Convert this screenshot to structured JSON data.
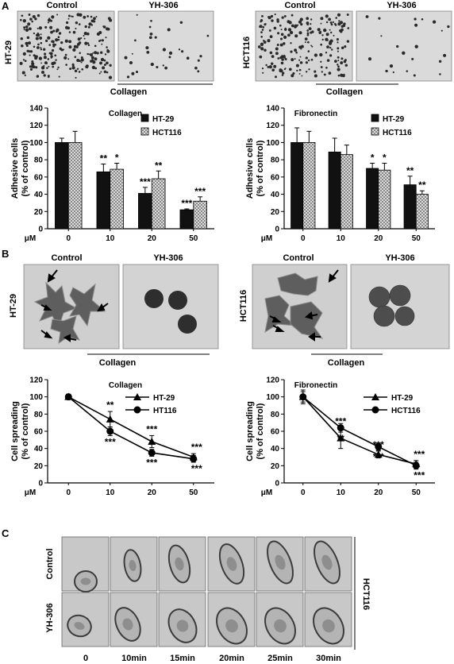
{
  "panel_letters": {
    "a": "A",
    "b": "B",
    "c": "C"
  },
  "panel_a": {
    "left": {
      "col1": "Control",
      "col2": "YH-306",
      "row": "HT-29",
      "substrate": "Collagen"
    },
    "right": {
      "col1": "Control",
      "col2": "YH-306",
      "row": "HCT116",
      "substrate": "Collagen"
    }
  },
  "panel_b": {
    "left": {
      "col1": "Control",
      "col2": "YH-306",
      "row": "HT-29",
      "substrate": "Collagen"
    },
    "right": {
      "col1": "Control",
      "col2": "YH-306",
      "row": "HCT116",
      "substrate": "Collagen"
    }
  },
  "panel_c": {
    "rows": [
      "Control",
      "YH-306"
    ],
    "cell_line": "HCT116",
    "times": [
      "0",
      "10min",
      "15min",
      "20min",
      "25min",
      "30min"
    ]
  },
  "chart_data": [
    {
      "type": "bar",
      "title": "Collagen",
      "ylabel": "Adhesive cells (% of control)",
      "xunit": "μM",
      "categories": [
        "0",
        "10",
        "20",
        "50"
      ],
      "ylim": [
        0,
        140
      ],
      "yticks": [
        0,
        20,
        40,
        60,
        80,
        100,
        120,
        140
      ],
      "legend_position": "top-right",
      "series": [
        {
          "name": "HT-29",
          "values": [
            100,
            66,
            41,
            22
          ],
          "errors": [
            5,
            9,
            7,
            1
          ],
          "sig": [
            "",
            "**",
            "***",
            "***"
          ],
          "color": "#111111"
        },
        {
          "name": "HCT116",
          "values": [
            100,
            69,
            58,
            32
          ],
          "errors": [
            13,
            7,
            9,
            5
          ],
          "sig": [
            "",
            "*",
            "**",
            "***"
          ],
          "color": "#cfcfcf"
        }
      ]
    },
    {
      "type": "bar",
      "title": "Fibronectin",
      "ylabel": "Adhesive cells (% of control)",
      "xunit": "μM",
      "categories": [
        "0",
        "10",
        "20",
        "50"
      ],
      "ylim": [
        0,
        140
      ],
      "yticks": [
        0,
        20,
        40,
        60,
        80,
        100,
        120,
        140
      ],
      "legend_position": "top-right",
      "series": [
        {
          "name": "HT-29",
          "values": [
            100,
            89,
            70,
            51
          ],
          "errors": [
            17,
            16,
            6,
            10
          ],
          "sig": [
            "",
            "",
            "*",
            "**"
          ],
          "color": "#111111"
        },
        {
          "name": "HCT116",
          "values": [
            100,
            86,
            68,
            40
          ],
          "errors": [
            13,
            11,
            8,
            4
          ],
          "sig": [
            "",
            "",
            "*",
            "**"
          ],
          "color": "#cfcfcf"
        }
      ]
    },
    {
      "type": "line",
      "title": "Collagen",
      "ylabel": "Cell spreading (% of control)",
      "xunit": "μM",
      "categories": [
        "0",
        "10",
        "20",
        "50"
      ],
      "ylim": [
        0,
        120
      ],
      "yticks": [
        0,
        20,
        40,
        60,
        80,
        100,
        120
      ],
      "legend_position": "top-right",
      "series": [
        {
          "name": "HT-29",
          "marker": "triangle",
          "values": [
            100,
            74,
            48,
            30
          ],
          "errors": [
            3,
            9,
            7,
            4
          ],
          "sig": [
            "",
            "**",
            "***",
            "***"
          ]
        },
        {
          "name": "HT116",
          "marker": "circle",
          "values": [
            100,
            60,
            35,
            28
          ],
          "errors": [
            3,
            5,
            4,
            4
          ],
          "sig": [
            "",
            "***",
            "***",
            "***"
          ]
        }
      ]
    },
    {
      "type": "line",
      "title": "Fibronectin",
      "ylabel": "Cell spreading (% of control)",
      "xunit": "μM",
      "categories": [
        "0",
        "10",
        "20",
        "50"
      ],
      "ylim": [
        0,
        120
      ],
      "yticks": [
        0,
        20,
        40,
        60,
        80,
        100,
        120
      ],
      "legend_position": "top-right",
      "series": [
        {
          "name": "HT-29",
          "marker": "triangle",
          "values": [
            100,
            52,
            33,
            22
          ],
          "errors": [
            8,
            12,
            4,
            4
          ],
          "sig": [
            "",
            "***",
            "***",
            "***"
          ]
        },
        {
          "name": "HCT116",
          "marker": "circle",
          "values": [
            100,
            64,
            42,
            20
          ],
          "errors": [
            6,
            5,
            4,
            4
          ],
          "sig": [
            "",
            "**",
            "***",
            "***"
          ]
        }
      ]
    }
  ]
}
